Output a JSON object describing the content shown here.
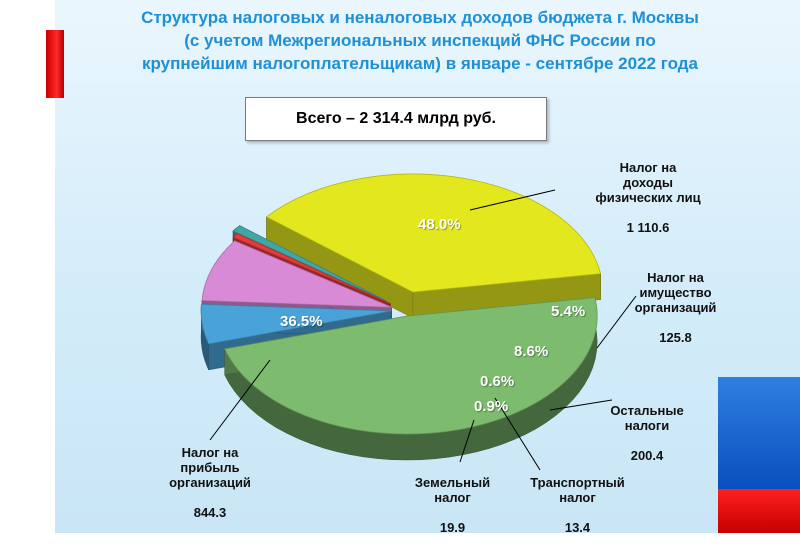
{
  "title": "Структура  налоговых и неналоговых доходов бюджета г. Москвы\n(с учетом Межрегиональных инспекций ФНС России по\nкрупнейшим налогоплательщикам) в январе - сентябре 2022 года",
  "total_label": "Всего – 2 314.4 млрд руб.",
  "colors": {
    "accent_title": "#1f8fd6",
    "ndfl": "#7dbb6e",
    "property": "#4aa3d8",
    "other": "#d98ad6",
    "transport": "#e53a3a",
    "land": "#43a6a6",
    "profit": "#e3e81e"
  },
  "chart_data": {
    "type": "pie",
    "title": "Структура  налоговых и неналоговых доходов бюджета г. Москвы (с учетом Межрегиональных инспекций ФНС России по крупнейшим налогоплательщикам) в январе - сентябре 2022 года",
    "total": "Всего – 2 314.4 млрд руб.",
    "slices": [
      {
        "key": "ndfl",
        "label": "Налог на\nдоходы\nфизических лиц",
        "value": "1 110.6",
        "value_num": 1110.6,
        "percent_label": "48.0%",
        "percent": 48.0
      },
      {
        "key": "property",
        "label": "Налог на\nимущество\nорганизаций",
        "value": "125.8",
        "value_num": 125.8,
        "percent_label": "5.4%",
        "percent": 5.4
      },
      {
        "key": "other",
        "label": "Остальные\nналоги",
        "value": "200.4",
        "value_num": 200.4,
        "percent_label": "8.6%",
        "percent": 8.6
      },
      {
        "key": "transport",
        "label": "Транспортный\nналог",
        "value": "13.4",
        "value_num": 13.4,
        "percent_label": "0.6%",
        "percent": 0.6
      },
      {
        "key": "land",
        "label": "Земельный\nналог",
        "value": "19.9",
        "value_num": 19.9,
        "percent_label": "0.9%",
        "percent": 0.9
      },
      {
        "key": "profit",
        "label": "Налог на\nприбыль\nорганизаций",
        "value": "844.3",
        "value_num": 844.3,
        "percent_label": "36.5%",
        "percent": 36.5
      }
    ]
  }
}
